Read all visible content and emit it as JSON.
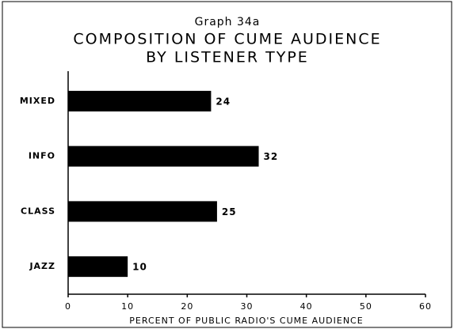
{
  "chart_data": {
    "type": "barh",
    "subtitle": "Graph 34a",
    "title": [
      "COMPOSITION OF CUME AUDIENCE",
      "BY LISTENER TYPE"
    ],
    "categories": [
      "MIXED",
      "INFO",
      "CLASS",
      "JAZZ"
    ],
    "values": [
      24,
      32,
      25,
      10
    ],
    "color": "#000000",
    "xlim": [
      0,
      60
    ],
    "xticks": [
      0,
      10,
      20,
      30,
      40,
      50,
      60
    ],
    "xlabel": "PERCENT OF PUBLIC RADIO'S CUME AUDIENCE",
    "grid": false
  }
}
